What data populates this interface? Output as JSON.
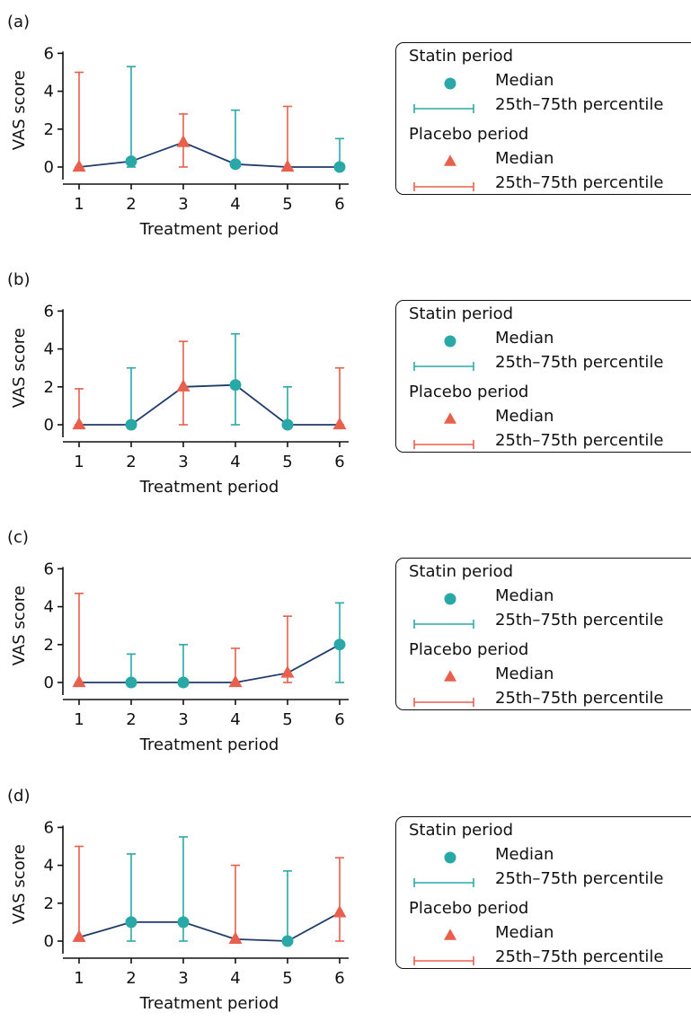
{
  "colors": {
    "statin": "#2aa8a8",
    "placebo": "#e8604c",
    "line": "#1f3b6b",
    "axis": "#111111"
  },
  "legend": {
    "statin_header": "Statin period",
    "placebo_header": "Placebo period",
    "median_label": "Median",
    "iqr_label": "25th–75th percentile"
  },
  "chart_data": [
    {
      "type": "line",
      "panel_label": "(a)",
      "xlabel": "Treatment period",
      "ylabel": "VAS score",
      "x": [
        1,
        2,
        3,
        4,
        5,
        6
      ],
      "ylim": [
        0,
        6
      ],
      "yticks": [
        0,
        2,
        4,
        6
      ],
      "period_type": [
        "placebo",
        "statin",
        "placebo",
        "statin",
        "placebo",
        "statin"
      ],
      "median": [
        0,
        0.3,
        1.3,
        0.15,
        0,
        0
      ],
      "p25": [
        0,
        0,
        0,
        0,
        0,
        0
      ],
      "p75": [
        5.0,
        5.3,
        2.8,
        3.0,
        3.2,
        1.5
      ]
    },
    {
      "type": "line",
      "panel_label": "(b)",
      "xlabel": "Treatment period",
      "ylabel": "VAS score",
      "x": [
        1,
        2,
        3,
        4,
        5,
        6
      ],
      "ylim": [
        0,
        6
      ],
      "yticks": [
        0,
        2,
        4,
        6
      ],
      "period_type": [
        "placebo",
        "statin",
        "placebo",
        "statin",
        "statin",
        "placebo"
      ],
      "median": [
        0,
        0,
        2.0,
        2.1,
        0,
        0
      ],
      "p25": [
        0,
        0,
        0,
        0,
        0,
        0
      ],
      "p75": [
        1.9,
        3.0,
        4.4,
        4.8,
        2.0,
        3.0
      ]
    },
    {
      "type": "line",
      "panel_label": "(c)",
      "xlabel": "Treatment period",
      "ylabel": "VAS score",
      "x": [
        1,
        2,
        3,
        4,
        5,
        6
      ],
      "ylim": [
        0,
        6
      ],
      "yticks": [
        0,
        2,
        4,
        6
      ],
      "period_type": [
        "placebo",
        "statin",
        "statin",
        "placebo",
        "placebo",
        "statin"
      ],
      "median": [
        0,
        0,
        0,
        0,
        0.5,
        2.0
      ],
      "p25": [
        0,
        0,
        0,
        0,
        0,
        0
      ],
      "p75": [
        4.7,
        1.5,
        2.0,
        1.8,
        3.5,
        4.2
      ]
    },
    {
      "type": "line",
      "panel_label": "(d)",
      "xlabel": "Treatment period",
      "ylabel": "VAS score",
      "x": [
        1,
        2,
        3,
        4,
        5,
        6
      ],
      "ylim": [
        0,
        6
      ],
      "yticks": [
        0,
        2,
        4,
        6
      ],
      "period_type": [
        "placebo",
        "statin",
        "statin",
        "placebo",
        "statin",
        "placebo"
      ],
      "median": [
        0.2,
        1.0,
        1.0,
        0.1,
        0,
        1.5
      ],
      "p25": [
        0,
        0,
        0,
        0,
        0,
        0
      ],
      "p75": [
        5.0,
        4.6,
        5.5,
        4.0,
        3.7,
        4.4
      ]
    }
  ]
}
